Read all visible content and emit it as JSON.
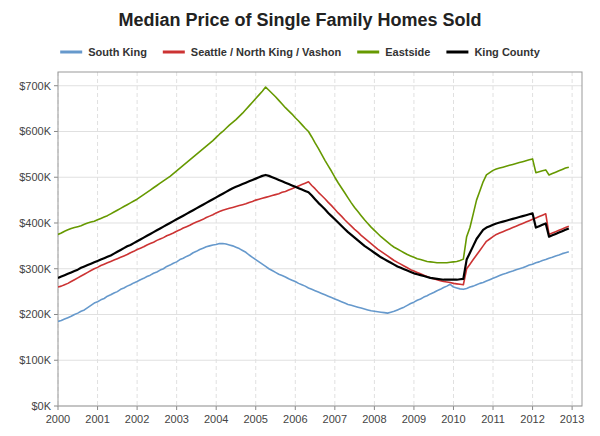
{
  "chart_data": {
    "type": "line",
    "title": "Median Price of Single Family Homes Sold",
    "x": [
      2000,
      2000.0833333333,
      2000.1666666667,
      2000.25,
      2000.3333333333,
      2000.4166666667,
      2000.5,
      2000.5833333333,
      2000.6666666667,
      2000.75,
      2000.8333333333,
      2000.9166666667,
      2001,
      2001.0833333333,
      2001.1666666667,
      2001.25,
      2001.3333333333,
      2001.4166666667,
      2001.5,
      2001.5833333333,
      2001.6666666667,
      2001.75,
      2001.8333333333,
      2001.9166666667,
      2002,
      2002.0833333333,
      2002.1666666667,
      2002.25,
      2002.3333333333,
      2002.4166666667,
      2002.5,
      2002.5833333333,
      2002.6666666667,
      2002.75,
      2002.8333333333,
      2002.9166666667,
      2003,
      2003.0833333333,
      2003.1666666667,
      2003.25,
      2003.3333333333,
      2003.4166666667,
      2003.5,
      2003.5833333333,
      2003.6666666667,
      2003.75,
      2003.8333333333,
      2003.9166666667,
      2004,
      2004.0833333333,
      2004.1666666667,
      2004.25,
      2004.3333333333,
      2004.4166666667,
      2004.5,
      2004.5833333333,
      2004.6666666667,
      2004.75,
      2004.8333333333,
      2004.9166666667,
      2005,
      2005.0833333333,
      2005.1666666667,
      2005.25,
      2005.3333333333,
      2005.4166666667,
      2005.5,
      2005.5833333333,
      2005.6666666667,
      2005.75,
      2005.8333333333,
      2005.9166666667,
      2006,
      2006.0833333333,
      2006.1666666667,
      2006.25,
      2006.3333333333,
      2006.4166666667,
      2006.5,
      2006.5833333333,
      2006.6666666667,
      2006.75,
      2006.8333333333,
      2006.9166666667,
      2007,
      2007.0833333333,
      2007.1666666667,
      2007.25,
      2007.3333333333,
      2007.4166666667,
      2007.5,
      2007.5833333333,
      2007.6666666667,
      2007.75,
      2007.8333333333,
      2007.9166666667,
      2008,
      2008.0833333333,
      2008.1666666667,
      2008.25,
      2008.3333333333,
      2008.4166666667,
      2008.5,
      2008.5833333333,
      2008.6666666667,
      2008.75,
      2008.8333333333,
      2008.9166666667,
      2009,
      2009.0833333333,
      2009.1666666667,
      2009.25,
      2009.3333333333,
      2009.4166666667,
      2009.5,
      2009.5833333333,
      2009.6666666667,
      2009.75,
      2009.8333333333,
      2009.9166666667,
      2010,
      2010.0833333333,
      2010.1666666667,
      2010.25,
      2010.3333333333,
      2010.4166666667,
      2010.5,
      2010.5833333333,
      2010.6666666667,
      2010.75,
      2010.8333333333,
      2010.9166666667,
      2011,
      2011.0833333333,
      2011.1666666667,
      2011.25,
      2011.3333333333,
      2011.4166666667,
      2011.5,
      2011.5833333333,
      2011.6666666667,
      2011.75,
      2011.8333333333,
      2011.9166666667,
      2012,
      2012.0833333333,
      2012.1666666667,
      2012.25,
      2012.3333333333,
      2012.4166666667,
      2012.5,
      2012.5833333333,
      2012.6666666667,
      2012.75,
      2012.8333333333,
      2012.9166666667
    ],
    "series": [
      {
        "name": "South King",
        "color": "#6699cc",
        "values": [
          185000,
          187000,
          190000,
          193000,
          196000,
          200000,
          203000,
          207000,
          210000,
          215000,
          220000,
          225000,
          228000,
          232000,
          235000,
          240000,
          243000,
          247000,
          250000,
          255000,
          258000,
          262000,
          265000,
          269000,
          272000,
          276000,
          279000,
          283000,
          286000,
          290000,
          293000,
          297000,
          300000,
          305000,
          308000,
          312000,
          315000,
          320000,
          323000,
          327000,
          330000,
          335000,
          338000,
          342000,
          345000,
          348000,
          350000,
          352000,
          353000,
          355000,
          355000,
          354000,
          352000,
          350000,
          347000,
          344000,
          340000,
          336000,
          330000,
          325000,
          320000,
          315000,
          310000,
          305000,
          300000,
          296000,
          292000,
          288000,
          285000,
          282000,
          278000,
          275000,
          272000,
          268000,
          265000,
          262000,
          258000,
          255000,
          252000,
          249000,
          246000,
          243000,
          240000,
          237000,
          234000,
          231000,
          228000,
          225000,
          222000,
          220000,
          218000,
          216000,
          214000,
          212000,
          210000,
          208000,
          207000,
          206000,
          205000,
          204000,
          203000,
          205000,
          207000,
          210000,
          213000,
          216000,
          220000,
          224000,
          227000,
          231000,
          234000,
          238000,
          241000,
          245000,
          248000,
          252000,
          255000,
          259000,
          262000,
          266000,
          260000,
          258000,
          256000,
          255000,
          257000,
          260000,
          262000,
          265000,
          268000,
          270000,
          273000,
          276000,
          279000,
          282000,
          285000,
          288000,
          290000,
          293000,
          295000,
          298000,
          300000,
          302000,
          305000,
          308000,
          310000,
          313000,
          315000,
          318000,
          320000,
          323000,
          325000,
          328000,
          330000,
          333000,
          335000,
          337000
        ]
      },
      {
        "name": "Seattle / North King / Vashon",
        "color": "#cc3333",
        "values": [
          260000,
          262000,
          265000,
          268000,
          272000,
          276000,
          280000,
          284000,
          288000,
          292000,
          296000,
          300000,
          303000,
          307000,
          310000,
          313000,
          316000,
          319000,
          322000,
          325000,
          328000,
          331000,
          335000,
          338000,
          342000,
          345000,
          348000,
          352000,
          355000,
          358000,
          362000,
          365000,
          368000,
          372000,
          375000,
          378000,
          382000,
          385000,
          389000,
          392000,
          395000,
          399000,
          402000,
          405000,
          408000,
          412000,
          415000,
          418000,
          422000,
          425000,
          428000,
          430000,
          432000,
          434000,
          436000,
          438000,
          440000,
          442000,
          445000,
          447000,
          450000,
          452000,
          454000,
          456000,
          458000,
          460000,
          462000,
          464000,
          467000,
          469000,
          472000,
          475000,
          478000,
          481000,
          484000,
          487000,
          490000,
          482000,
          475000,
          467000,
          460000,
          453000,
          445000,
          438000,
          430000,
          422000,
          415000,
          407000,
          400000,
          393000,
          386000,
          380000,
          373000,
          367000,
          361000,
          355000,
          349000,
          343000,
          338000,
          333000,
          328000,
          323000,
          318000,
          314000,
          310000,
          306000,
          302000,
          298000,
          295000,
          292000,
          289000,
          286000,
          283000,
          280000,
          278000,
          276000,
          274000,
          272000,
          271000,
          270000,
          268000,
          267000,
          266000,
          265000,
          300000,
          310000,
          320000,
          330000,
          340000,
          350000,
          360000,
          365000,
          370000,
          375000,
          378000,
          381000,
          384000,
          387000,
          390000,
          393000,
          396000,
          399000,
          402000,
          405000,
          408000,
          411000,
          414000,
          417000,
          420000,
          375000,
          378000,
          381000,
          384000,
          387000,
          390000,
          393000
        ]
      },
      {
        "name": "Eastside",
        "color": "#669900",
        "values": [
          375000,
          378000,
          382000,
          385000,
          388000,
          390000,
          392000,
          394000,
          397000,
          400000,
          402000,
          404000,
          407000,
          410000,
          413000,
          416000,
          420000,
          424000,
          428000,
          432000,
          436000,
          440000,
          444000,
          448000,
          452000,
          457000,
          462000,
          467000,
          472000,
          477000,
          482000,
          487000,
          492000,
          497000,
          502000,
          508000,
          514000,
          520000,
          526000,
          532000,
          538000,
          544000,
          550000,
          556000,
          562000,
          568000,
          574000,
          580000,
          587000,
          594000,
          600000,
          607000,
          614000,
          620000,
          626000,
          633000,
          640000,
          648000,
          656000,
          664000,
          672000,
          680000,
          688000,
          697000,
          690000,
          683000,
          676000,
          668000,
          660000,
          652000,
          645000,
          638000,
          630000,
          623000,
          615000,
          607000,
          600000,
          588000,
          575000,
          563000,
          550000,
          537000,
          525000,
          513000,
          500000,
          488000,
          477000,
          466000,
          455000,
          444000,
          434000,
          425000,
          416000,
          407000,
          399000,
          391000,
          384000,
          377000,
          370000,
          364000,
          358000,
          352000,
          347000,
          343000,
          339000,
          335000,
          331000,
          328000,
          325000,
          322000,
          320000,
          318000,
          316000,
          315000,
          314000,
          313000,
          313000,
          313000,
          313000,
          314000,
          315000,
          316000,
          318000,
          321000,
          370000,
          390000,
          420000,
          450000,
          470000,
          490000,
          505000,
          510000,
          515000,
          518000,
          520000,
          522000,
          524000,
          526000,
          528000,
          530000,
          532000,
          534000,
          536000,
          538000,
          540000,
          510000,
          512000,
          514000,
          516000,
          505000,
          508000,
          511000,
          514000,
          517000,
          520000,
          522000
        ]
      },
      {
        "name": "King County",
        "color": "#000000",
        "values": [
          280000,
          283000,
          286000,
          289000,
          292000,
          295000,
          298000,
          302000,
          305000,
          308000,
          311000,
          314000,
          317000,
          320000,
          323000,
          326000,
          329000,
          333000,
          337000,
          341000,
          345000,
          349000,
          352000,
          356000,
          360000,
          364000,
          368000,
          372000,
          376000,
          380000,
          384000,
          388000,
          392000,
          396000,
          400000,
          404000,
          408000,
          412000,
          416000,
          420000,
          424000,
          428000,
          432000,
          436000,
          440000,
          444000,
          448000,
          452000,
          456000,
          460000,
          464000,
          468000,
          472000,
          476000,
          479000,
          482000,
          485000,
          488000,
          491000,
          494000,
          497000,
          500000,
          503000,
          505000,
          503000,
          500000,
          497000,
          494000,
          491000,
          488000,
          485000,
          482000,
          479000,
          476000,
          473000,
          470000,
          467000,
          460000,
          452000,
          444000,
          437000,
          430000,
          422000,
          415000,
          408000,
          401000,
          394000,
          387000,
          380000,
          374000,
          368000,
          362000,
          356000,
          350000,
          345000,
          340000,
          335000,
          330000,
          325000,
          321000,
          317000,
          313000,
          309000,
          305000,
          302000,
          299000,
          296000,
          293000,
          290000,
          288000,
          286000,
          284000,
          282000,
          280000,
          279000,
          278000,
          277000,
          276000,
          276000,
          276000,
          276000,
          276000,
          277000,
          278000,
          320000,
          335000,
          350000,
          365000,
          375000,
          385000,
          390000,
          393000,
          396000,
          399000,
          401000,
          403000,
          405000,
          407000,
          409000,
          411000,
          413000,
          415000,
          417000,
          419000,
          421000,
          390000,
          393000,
          396000,
          399000,
          370000,
          373000,
          376000,
          379000,
          382000,
          385000,
          388000
        ]
      }
    ],
    "xlim": [
      2000.0,
      2013.25
    ],
    "xticks": [
      2000,
      2001,
      2002,
      2003,
      2004,
      2005,
      2006,
      2007,
      2008,
      2009,
      2010,
      2011,
      2012,
      2013
    ],
    "ylim": [
      0,
      730000
    ],
    "yticks": [
      {
        "value": 0,
        "label": "$0K"
      },
      {
        "value": 100000,
        "label": "$100K"
      },
      {
        "value": 200000,
        "label": "$200K"
      },
      {
        "value": 300000,
        "label": "$300K"
      },
      {
        "value": 400000,
        "label": "$400K"
      },
      {
        "value": 500000,
        "label": "$500K"
      },
      {
        "value": 600000,
        "label": "$600K"
      },
      {
        "value": 700000,
        "label": "$700K"
      }
    ],
    "grid": true,
    "legend": "top"
  }
}
